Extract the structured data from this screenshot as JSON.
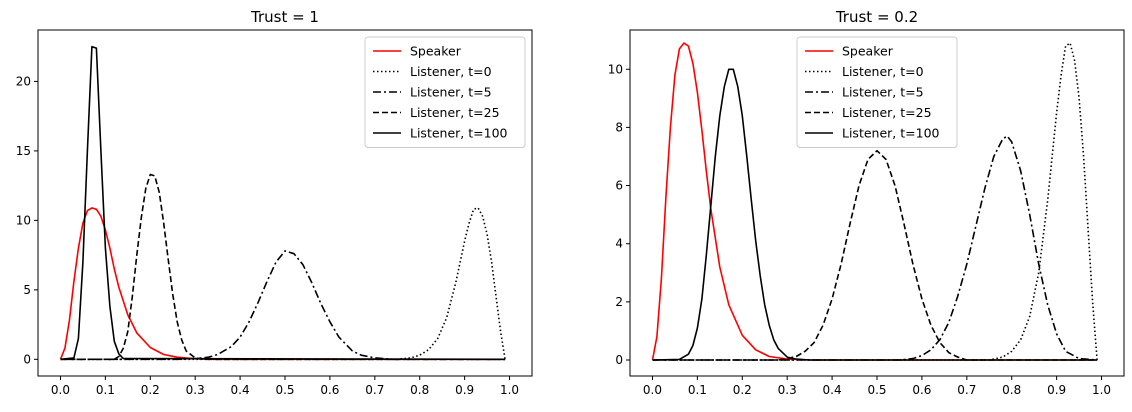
{
  "chart_data": [
    {
      "type": "line",
      "title": "Trust = 1",
      "xlabel": "",
      "ylabel": "",
      "xlim": [
        -0.05,
        1.05
      ],
      "ylim": [
        -1.2,
        23.7
      ],
      "xticks": [
        0.0,
        0.1,
        0.2,
        0.3,
        0.4,
        0.5,
        0.6,
        0.7,
        0.8,
        0.9,
        1.0
      ],
      "xtick_labels": [
        "0.0",
        "0.1",
        "0.2",
        "0.3",
        "0.4",
        "0.5",
        "0.6",
        "0.7",
        "0.8",
        "0.9",
        "1.0"
      ],
      "yticks": [
        0,
        5,
        10,
        15,
        20
      ],
      "ytick_labels": [
        "0",
        "5",
        "10",
        "15",
        "20"
      ],
      "legend_position": "top-right",
      "series": [
        {
          "name": "Speaker",
          "color": "#ff0000",
          "style": "solid",
          "x": [
            0.0,
            0.01,
            0.02,
            0.03,
            0.04,
            0.05,
            0.06,
            0.07,
            0.08,
            0.09,
            0.1,
            0.11,
            0.12,
            0.13,
            0.15,
            0.17,
            0.2,
            0.23,
            0.26,
            0.3,
            0.35,
            0.4,
            0.99
          ],
          "y": [
            0.0,
            0.8,
            2.8,
            5.6,
            8.0,
            9.8,
            10.7,
            10.9,
            10.8,
            10.3,
            9.3,
            8.0,
            6.5,
            5.2,
            3.2,
            1.9,
            0.85,
            0.35,
            0.15,
            0.04,
            0.0,
            0.0,
            0.0
          ]
        },
        {
          "name": "Listener, t=0",
          "color": "#000000",
          "style": "dotted",
          "x": [
            0.0,
            0.75,
            0.78,
            0.8,
            0.82,
            0.84,
            0.86,
            0.88,
            0.9,
            0.91,
            0.92,
            0.93,
            0.94,
            0.95,
            0.96,
            0.97,
            0.98,
            0.99
          ],
          "y": [
            0.0,
            0.0,
            0.1,
            0.3,
            0.7,
            1.5,
            3.0,
            5.5,
            8.5,
            9.8,
            10.8,
            10.9,
            10.3,
            9.0,
            7.0,
            4.5,
            2.0,
            0.0
          ]
        },
        {
          "name": "Listener, t=5",
          "color": "#000000",
          "style": "dashdot",
          "x": [
            0.0,
            0.26,
            0.3,
            0.33,
            0.35,
            0.38,
            0.4,
            0.42,
            0.44,
            0.46,
            0.48,
            0.5,
            0.52,
            0.54,
            0.56,
            0.58,
            0.6,
            0.62,
            0.65,
            0.67,
            0.7,
            0.74,
            0.99
          ],
          "y": [
            0.0,
            0.0,
            0.05,
            0.15,
            0.35,
            0.9,
            1.6,
            2.7,
            4.1,
            5.6,
            7.0,
            7.8,
            7.6,
            6.8,
            5.5,
            4.0,
            2.7,
            1.6,
            0.6,
            0.3,
            0.1,
            0.0,
            0.0
          ]
        },
        {
          "name": "Listener, t=25",
          "color": "#000000",
          "style": "dashed",
          "x": [
            0.0,
            0.12,
            0.13,
            0.14,
            0.15,
            0.16,
            0.17,
            0.18,
            0.19,
            0.2,
            0.21,
            0.22,
            0.23,
            0.24,
            0.25,
            0.26,
            0.27,
            0.28,
            0.3,
            0.32,
            0.99
          ],
          "y": [
            0.0,
            0.0,
            0.2,
            0.8,
            2.0,
            4.5,
            7.5,
            10.2,
            12.3,
            13.3,
            13.2,
            12.0,
            9.8,
            7.2,
            4.7,
            2.7,
            1.4,
            0.6,
            0.1,
            0.0,
            0.0
          ]
        },
        {
          "name": "Listener, t=100",
          "color": "#000000",
          "style": "solid",
          "x": [
            0.0,
            0.03,
            0.04,
            0.05,
            0.06,
            0.07,
            0.08,
            0.09,
            0.1,
            0.11,
            0.12,
            0.13,
            0.14,
            0.99
          ],
          "y": [
            0.0,
            0.1,
            1.5,
            7.0,
            15.0,
            22.5,
            22.4,
            15.0,
            8.0,
            3.8,
            1.3,
            0.4,
            0.05,
            0.0
          ]
        }
      ]
    },
    {
      "type": "line",
      "title": "Trust = 0.2",
      "xlabel": "",
      "ylabel": "",
      "xlim": [
        -0.05,
        1.05
      ],
      "ylim": [
        -0.55,
        11.35
      ],
      "xticks": [
        0.0,
        0.1,
        0.2,
        0.3,
        0.4,
        0.5,
        0.6,
        0.7,
        0.8,
        0.9,
        1.0
      ],
      "xtick_labels": [
        "0.0",
        "0.1",
        "0.2",
        "0.3",
        "0.4",
        "0.5",
        "0.6",
        "0.7",
        "0.8",
        "0.9",
        "1.0"
      ],
      "yticks": [
        0,
        2,
        4,
        6,
        8,
        10
      ],
      "ytick_labels": [
        "0",
        "2",
        "4",
        "6",
        "8",
        "10"
      ],
      "legend_position": "top-center",
      "series": [
        {
          "name": "Speaker",
          "color": "#ff0000",
          "style": "solid",
          "x": [
            0.0,
            0.01,
            0.02,
            0.03,
            0.04,
            0.05,
            0.06,
            0.07,
            0.08,
            0.09,
            0.1,
            0.11,
            0.12,
            0.13,
            0.15,
            0.17,
            0.2,
            0.23,
            0.26,
            0.3,
            0.35,
            0.99
          ],
          "y": [
            0.0,
            0.8,
            2.8,
            5.6,
            8.0,
            9.8,
            10.7,
            10.9,
            10.8,
            10.2,
            9.2,
            7.9,
            6.5,
            5.2,
            3.2,
            1.9,
            0.85,
            0.35,
            0.12,
            0.03,
            0.0,
            0.0
          ]
        },
        {
          "name": "Listener, t=0",
          "color": "#000000",
          "style": "dotted",
          "x": [
            0.0,
            0.75,
            0.78,
            0.8,
            0.82,
            0.84,
            0.86,
            0.88,
            0.9,
            0.91,
            0.92,
            0.93,
            0.94,
            0.95,
            0.96,
            0.97,
            0.98,
            0.99
          ],
          "y": [
            0.0,
            0.0,
            0.1,
            0.3,
            0.7,
            1.5,
            3.0,
            5.5,
            8.5,
            9.8,
            10.8,
            10.9,
            10.3,
            9.0,
            7.0,
            4.5,
            2.0,
            0.0
          ]
        },
        {
          "name": "Listener, t=5",
          "color": "#000000",
          "style": "dashdot",
          "x": [
            0.0,
            0.55,
            0.58,
            0.6,
            0.62,
            0.64,
            0.66,
            0.68,
            0.7,
            0.72,
            0.74,
            0.76,
            0.78,
            0.79,
            0.8,
            0.82,
            0.84,
            0.86,
            0.88,
            0.9,
            0.92,
            0.95,
            0.99
          ],
          "y": [
            0.0,
            0.0,
            0.05,
            0.15,
            0.35,
            0.7,
            1.3,
            2.2,
            3.3,
            4.6,
            5.9,
            7.0,
            7.6,
            7.7,
            7.5,
            6.5,
            5.0,
            3.3,
            1.9,
            0.9,
            0.3,
            0.05,
            0.0
          ]
        },
        {
          "name": "Listener, t=25",
          "color": "#000000",
          "style": "dashed",
          "x": [
            0.0,
            0.28,
            0.3,
            0.32,
            0.34,
            0.36,
            0.38,
            0.4,
            0.42,
            0.44,
            0.46,
            0.48,
            0.5,
            0.52,
            0.54,
            0.56,
            0.58,
            0.6,
            0.62,
            0.64,
            0.66,
            0.68,
            0.7,
            0.99
          ],
          "y": [
            0.0,
            0.0,
            0.05,
            0.12,
            0.3,
            0.6,
            1.2,
            2.1,
            3.3,
            4.7,
            6.0,
            6.9,
            7.2,
            6.9,
            6.0,
            4.7,
            3.3,
            2.1,
            1.2,
            0.6,
            0.25,
            0.1,
            0.0,
            0.0
          ]
        },
        {
          "name": "Listener, t=100",
          "color": "#000000",
          "style": "solid",
          "x": [
            0.0,
            0.06,
            0.08,
            0.09,
            0.1,
            0.11,
            0.12,
            0.13,
            0.14,
            0.15,
            0.16,
            0.17,
            0.18,
            0.19,
            0.2,
            0.21,
            0.22,
            0.23,
            0.24,
            0.25,
            0.26,
            0.27,
            0.28,
            0.3,
            0.32,
            0.35,
            0.99
          ],
          "y": [
            0.0,
            0.02,
            0.2,
            0.5,
            1.1,
            2.1,
            3.6,
            5.3,
            7.0,
            8.4,
            9.4,
            10.0,
            10.0,
            9.4,
            8.4,
            7.0,
            5.5,
            4.1,
            2.9,
            1.9,
            1.2,
            0.7,
            0.4,
            0.1,
            0.03,
            0.0,
            0.0
          ]
        }
      ]
    }
  ]
}
